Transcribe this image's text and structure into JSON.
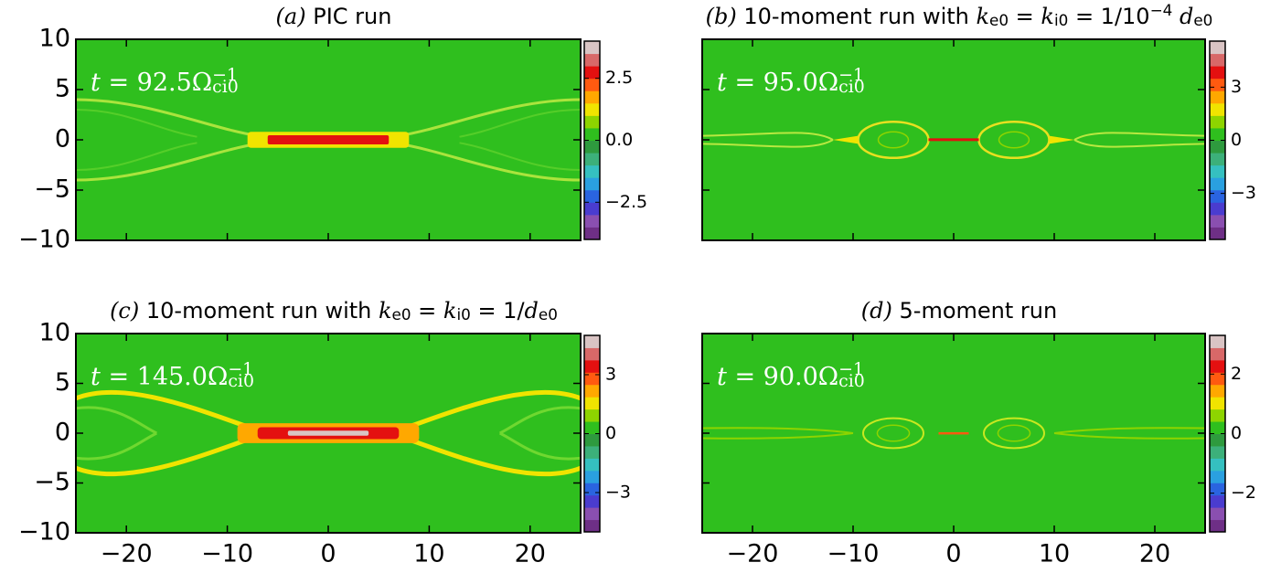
{
  "chart_data": [
    {
      "type": "heatmap",
      "title": [
        {
          "text": "(a)",
          "italic": true
        },
        {
          "text": " PIC run"
        }
      ],
      "annotation": [
        {
          "text": "t",
          "italic": true
        },
        {
          "text": " = 92.5Ω"
        },
        {
          "text": "−1",
          "sup": true
        },
        {
          "text": "ci0",
          "sub": true
        }
      ],
      "xlim": [
        -25,
        25
      ],
      "xticks": [
        -20,
        -10,
        0,
        10,
        20
      ],
      "ylim": [
        -10,
        10
      ],
      "yticks": [
        {
          "value": -10,
          "label": "−10"
        },
        {
          "value": -5,
          "label": "−5"
        },
        {
          "value": 0,
          "label": "0"
        },
        {
          "value": 5,
          "label": "5"
        },
        {
          "value": 10,
          "label": "10"
        }
      ],
      "clim": [
        -4,
        4
      ],
      "cticks": [
        {
          "value": -2.5,
          "label": "−2.5"
        },
        {
          "value": 0,
          "label": "0.0"
        },
        {
          "value": 2.5,
          "label": "2.5"
        }
      ]
    },
    {
      "type": "heatmap",
      "title": [
        {
          "text": "(b)",
          "italic": true
        },
        {
          "text": " 10-moment run with "
        },
        {
          "text": "k",
          "italic": true
        },
        {
          "text": "e0",
          "sub": true
        },
        {
          "text": " = "
        },
        {
          "text": "k",
          "italic": true
        },
        {
          "text": "i0",
          "sub": true
        },
        {
          "text": " = 1/10"
        },
        {
          "text": "−4",
          "sup": true
        },
        {
          "text": " d",
          "italic": true
        },
        {
          "text": "e0",
          "sub": true
        }
      ],
      "annotation": [
        {
          "text": "t",
          "italic": true
        },
        {
          "text": " = 95.0Ω"
        },
        {
          "text": "−1",
          "sup": true
        },
        {
          "text": "ci0",
          "sub": true
        }
      ],
      "xlim": [
        -25,
        25
      ],
      "xticks": [
        -20,
        -10,
        0,
        10,
        20
      ],
      "ylim": [
        -10,
        10
      ],
      "yticks": [
        -10,
        -5,
        0,
        5,
        10
      ],
      "clim": [
        -5.6,
        5.6
      ],
      "cticks": [
        {
          "value": -3,
          "label": "−3"
        },
        0,
        3
      ]
    },
    {
      "type": "heatmap",
      "title": [
        {
          "text": "(c)",
          "italic": true
        },
        {
          "text": " 10-moment run with "
        },
        {
          "text": "k",
          "italic": true
        },
        {
          "text": "e0",
          "sub": true
        },
        {
          "text": " = "
        },
        {
          "text": "k",
          "italic": true
        },
        {
          "text": "i0",
          "sub": true
        },
        {
          "text": " = 1/"
        },
        {
          "text": "d",
          "italic": true
        },
        {
          "text": "e0",
          "sub": true
        }
      ],
      "annotation": [
        {
          "text": "t",
          "italic": true
        },
        {
          "text": " = 145.0Ω"
        },
        {
          "text": "−1",
          "sup": true
        },
        {
          "text": "ci0",
          "sub": true
        }
      ],
      "xlim": [
        -25,
        25
      ],
      "xticks": [
        {
          "value": -20,
          "label": "−20"
        },
        {
          "value": -10,
          "label": "−10"
        },
        {
          "value": 0,
          "label": "0"
        },
        {
          "value": 10,
          "label": "10"
        },
        {
          "value": 20,
          "label": "20"
        }
      ],
      "ylim": [
        -10,
        10
      ],
      "yticks": [
        {
          "value": -10,
          "label": "−10"
        },
        {
          "value": -5,
          "label": "−5"
        },
        {
          "value": 0,
          "label": "0"
        },
        {
          "value": 5,
          "label": "5"
        },
        {
          "value": 10,
          "label": "10"
        }
      ],
      "clim": [
        -5,
        5
      ],
      "cticks": [
        {
          "value": -3,
          "label": "−3"
        },
        0,
        3
      ]
    },
    {
      "type": "heatmap",
      "title": [
        {
          "text": "(d)",
          "italic": true
        },
        {
          "text": " 5-moment run"
        }
      ],
      "annotation": [
        {
          "text": "t",
          "italic": true
        },
        {
          "text": " = 90.0Ω"
        },
        {
          "text": "−1",
          "sup": true
        },
        {
          "text": "ci0",
          "sub": true
        }
      ],
      "xlim": [
        -25,
        25
      ],
      "xticks": [
        {
          "value": -20,
          "label": "−20"
        },
        {
          "value": -10,
          "label": "−10"
        },
        {
          "value": 0,
          "label": "0"
        },
        {
          "value": 10,
          "label": "10"
        },
        {
          "value": 20,
          "label": "20"
        }
      ],
      "ylim": [
        -10,
        10
      ],
      "yticks": [
        -10,
        -5,
        0,
        5,
        10
      ],
      "clim": [
        -3.3,
        3.3
      ],
      "cticks": [
        {
          "value": -2,
          "label": "−2"
        },
        0,
        2
      ]
    }
  ]
}
